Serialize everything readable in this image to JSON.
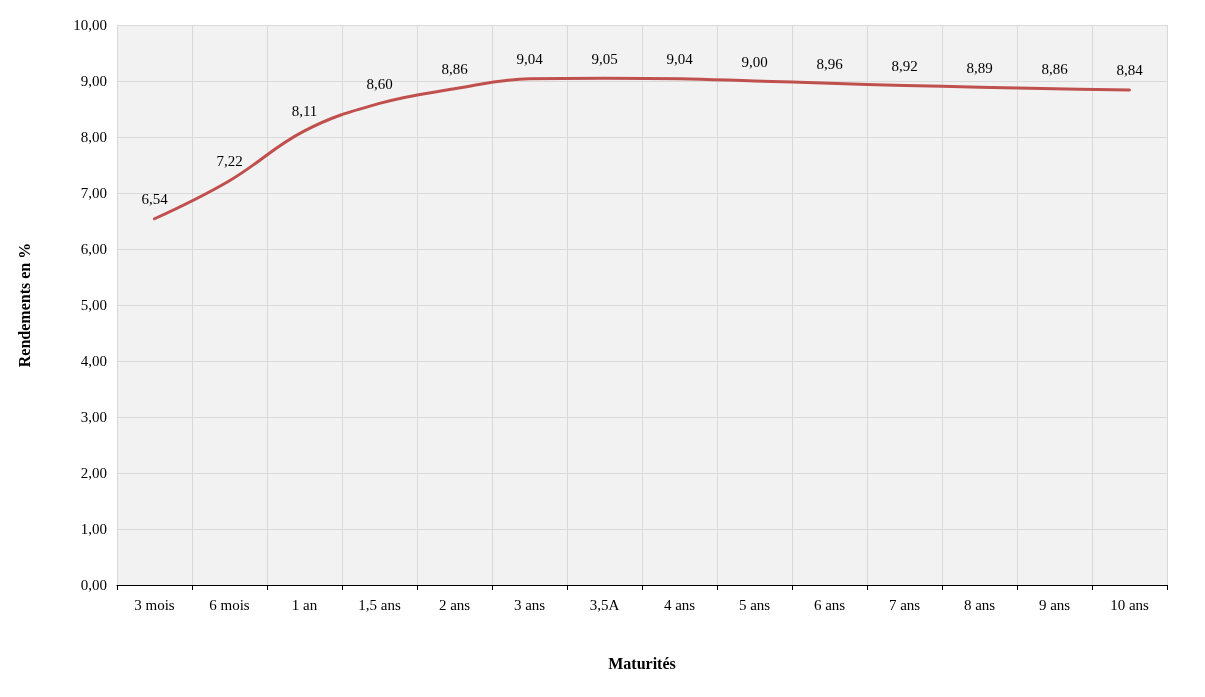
{
  "chart_data": {
    "type": "line",
    "xlabel": "Maturités",
    "ylabel": "Rendements en %",
    "categories": [
      "3 mois",
      "6 mois",
      "1 an",
      "1,5 ans",
      "2 ans",
      "3 ans",
      "3,5A",
      "4 ans",
      "5 ans",
      "6 ans",
      "7 ans",
      "8 ans",
      "9 ans",
      "10 ans"
    ],
    "series": [
      {
        "color": "#c0504d",
        "values": [
          6.54,
          7.22,
          8.11,
          8.6,
          8.86,
          9.04,
          9.05,
          9.04,
          9.0,
          8.96,
          8.92,
          8.89,
          8.86,
          8.84
        ],
        "value_labels": [
          "6,54",
          "7,22",
          "8,11",
          "8,60",
          "8,86",
          "9,04",
          "9,05",
          "9,04",
          "9,00",
          "8,96",
          "8,92",
          "8,89",
          "8,86",
          "8,84"
        ]
      }
    ],
    "ylim": [
      0,
      10
    ],
    "yticks": [
      {
        "value": 0,
        "label": "0,00"
      },
      {
        "value": 1,
        "label": "1,00"
      },
      {
        "value": 2,
        "label": "2,00"
      },
      {
        "value": 3,
        "label": "3,00"
      },
      {
        "value": 4,
        "label": "4,00"
      },
      {
        "value": 5,
        "label": "5,00"
      },
      {
        "value": 6,
        "label": "6,00"
      },
      {
        "value": 7,
        "label": "7,00"
      },
      {
        "value": 8,
        "label": "8,00"
      },
      {
        "value": 9,
        "label": "9,00"
      },
      {
        "value": 10,
        "label": "10,00"
      }
    ],
    "grid": true,
    "marker": "none",
    "line_style": "solid"
  }
}
